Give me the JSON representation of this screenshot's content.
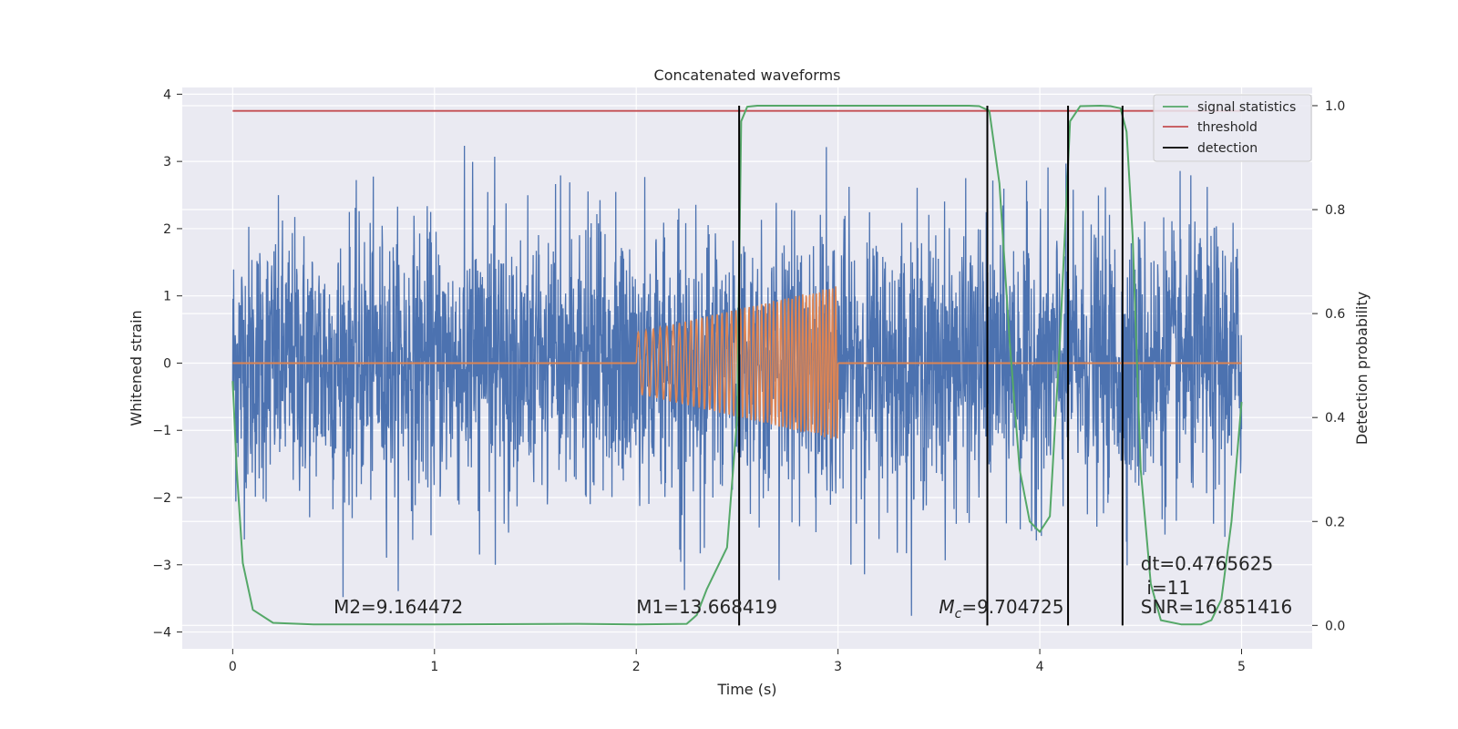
{
  "chart_data": {
    "type": "line",
    "title": "Concatenated waveforms",
    "xlabel": "Time (s)",
    "ylabel": "Whitened strain",
    "y2label": "Detection probability",
    "xlim": [
      -0.25,
      5.35
    ],
    "ylim": [
      -4.25,
      4.1
    ],
    "y2lim": [
      -0.045,
      1.035
    ],
    "x_ticks": [
      0,
      1,
      2,
      3,
      4,
      5
    ],
    "y_ticks": [
      -4,
      -3,
      -2,
      -1,
      0,
      1,
      2,
      3,
      4
    ],
    "y2_ticks": [
      0.0,
      0.2,
      0.4,
      0.6,
      0.8,
      1.0
    ],
    "x_tick_labels": [
      "0",
      "1",
      "2",
      "3",
      "4",
      "5"
    ],
    "y_tick_labels": [
      "−4",
      "−3",
      "−2",
      "−1",
      "0",
      "1",
      "2",
      "3",
      "4"
    ],
    "y2_tick_labels": [
      "0.0",
      "0.2",
      "0.4",
      "0.6",
      "0.8",
      "1.0"
    ],
    "grid": true,
    "legend_position": "top-right",
    "colors": {
      "background": "#eaeaf2",
      "grid": "#ffffff",
      "noise": "#4c72b0",
      "template": "#dd8452",
      "signal_statistics": "#55a868",
      "threshold": "#c44e52",
      "detection": "#000000"
    },
    "series": [
      {
        "name": "signal statistics",
        "axis": "right",
        "x": [
          0,
          0.02,
          0.05,
          0.1,
          0.2,
          0.4,
          1.0,
          1.7,
          2.0,
          2.25,
          2.3,
          2.35,
          2.4,
          2.45,
          2.5,
          2.52,
          2.55,
          2.6,
          2.7,
          3.0,
          3.5,
          3.65,
          3.7,
          3.75,
          3.8,
          3.85,
          3.9,
          3.95,
          4.0,
          4.05,
          4.1,
          4.15,
          4.2,
          4.3,
          4.35,
          4.4,
          4.43,
          4.46,
          4.5,
          4.55,
          4.6,
          4.7,
          4.8,
          4.85,
          4.9,
          4.95,
          5.0
        ],
        "values": [
          0.47,
          0.3,
          0.12,
          0.03,
          0.005,
          0.002,
          0.002,
          0.003,
          0.002,
          0.003,
          0.02,
          0.07,
          0.11,
          0.15,
          0.4,
          0.97,
          0.998,
          1.0,
          1.0,
          1.0,
          1.0,
          1.0,
          0.999,
          0.99,
          0.85,
          0.55,
          0.3,
          0.2,
          0.18,
          0.21,
          0.55,
          0.97,
          0.999,
          1.0,
          0.999,
          0.995,
          0.95,
          0.75,
          0.3,
          0.08,
          0.01,
          0.002,
          0.002,
          0.01,
          0.05,
          0.2,
          0.43
        ]
      },
      {
        "name": "threshold",
        "axis": "right",
        "x": [
          0,
          5
        ],
        "values": [
          0.99,
          0.99
        ]
      },
      {
        "name": "detection",
        "axis": "right",
        "x_positions": [
          2.51,
          3.74,
          4.14,
          4.41
        ],
        "range": [
          0,
          1
        ]
      }
    ],
    "noise_series": {
      "axis": "left",
      "x_range": [
        0,
        5
      ],
      "typical_amplitude": 1.0,
      "max_value": 3.25,
      "min_value": -3.85
    },
    "template_series": {
      "axis": "left",
      "x_range": [
        2,
        3
      ],
      "amplitude_start": 0.45,
      "amplitude_end": 1.15,
      "baseline_range": [
        0,
        5
      ]
    },
    "annotations": [
      {
        "text": "M2=9.164472",
        "x": 0.5,
        "y": -3.72
      },
      {
        "text": "M1=13.668419",
        "x": 2.0,
        "y": -3.72
      },
      {
        "text_main": "M",
        "text_sub": "c",
        "text_rest": "=9.704725",
        "x": 3.5,
        "y": -3.72
      },
      {
        "text": "dt=0.4765625",
        "x": 4.5,
        "y": -3.08
      },
      {
        "text": "i=11",
        "x": 4.53,
        "y": -3.44
      },
      {
        "text": "SNR=16.851416",
        "x": 4.5,
        "y": -3.72
      }
    ]
  }
}
